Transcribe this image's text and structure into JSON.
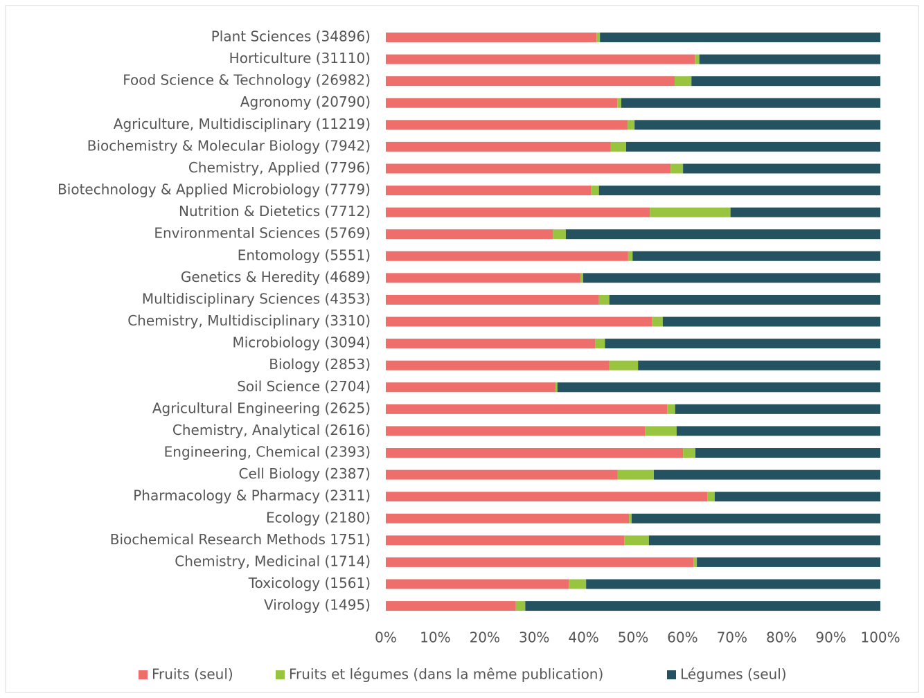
{
  "chart_data": {
    "type": "stacked_barh",
    "categories": [
      "Plant Sciences (34896)",
      "Horticulture (31110)",
      "Food Science & Technology (26982)",
      "Agronomy (20790)",
      "Agriculture, Multidisciplinary (11219)",
      "Biochemistry & Molecular Biology (7942)",
      "Chemistry, Applied (7796)",
      "Biotechnology & Applied Microbiology (7779)",
      "Nutrition & Dietetics (7712)",
      "Environmental Sciences (5769)",
      "Entomology (5551)",
      "Genetics & Heredity (4689)",
      "Multidisciplinary Sciences (4353)",
      "Chemistry, Multidisciplinary (3310)",
      "Microbiology (3094)",
      "Biology (2853)",
      "Soil Science (2704)",
      "Agricultural Engineering (2625)",
      "Chemistry, Analytical (2616)",
      "Engineering, Chemical (2393)",
      "Cell Biology (2387)",
      "Pharmacology & Pharmacy (2311)",
      "Ecology (2180)",
      "Biochemical Research Methods 1751)",
      "Chemistry, Medicinal (1714)",
      "Toxicology (1561)",
      "Virology (1495)"
    ],
    "series": [
      {
        "name": "Fruits (seul)",
        "color": "#ee6e6c",
        "values": [
          42.6,
          62.5,
          58.4,
          46.8,
          48.9,
          45.5,
          57.6,
          41.5,
          53.4,
          33.8,
          49.0,
          39.4,
          43.1,
          53.8,
          42.3,
          45.2,
          34.3,
          56.9,
          52.4,
          60.1,
          46.9,
          65.0,
          49.2,
          48.2,
          62.2,
          37.0,
          26.3
        ]
      },
      {
        "name": "Fruits et légumes (dans la même publication)",
        "color": "#99c440",
        "values": [
          0.7,
          0.9,
          3.4,
          0.8,
          1.4,
          3.1,
          2.5,
          1.6,
          16.3,
          2.6,
          0.9,
          0.5,
          2.1,
          2.2,
          2.0,
          5.8,
          0.4,
          1.6,
          6.4,
          2.5,
          7.3,
          1.5,
          0.5,
          5.0,
          0.7,
          3.5,
          1.9
        ]
      },
      {
        "name": "Légumes (seul)",
        "color": "#255260",
        "values": [
          56.7,
          36.6,
          38.2,
          52.4,
          49.7,
          51.4,
          39.9,
          56.9,
          30.3,
          63.6,
          50.1,
          60.1,
          54.8,
          44.0,
          55.7,
          49.0,
          65.3,
          41.5,
          41.2,
          37.4,
          45.8,
          33.5,
          50.3,
          46.8,
          37.1,
          59.5,
          71.8
        ]
      }
    ],
    "xlim": [
      0,
      100
    ],
    "xticks": [
      {
        "value": 0,
        "label": "0%"
      },
      {
        "value": 10,
        "label": "10%"
      },
      {
        "value": 20,
        "label": "20%"
      },
      {
        "value": 30,
        "label": "30%"
      },
      {
        "value": 40,
        "label": "40%"
      },
      {
        "value": 50,
        "label": "50%"
      },
      {
        "value": 60,
        "label": "60%"
      },
      {
        "value": 70,
        "label": "70%"
      },
      {
        "value": 80,
        "label": "80%"
      },
      {
        "value": 90,
        "label": "90%"
      },
      {
        "value": 100,
        "label": "100%"
      }
    ],
    "grid": false,
    "legend": "bottom"
  }
}
